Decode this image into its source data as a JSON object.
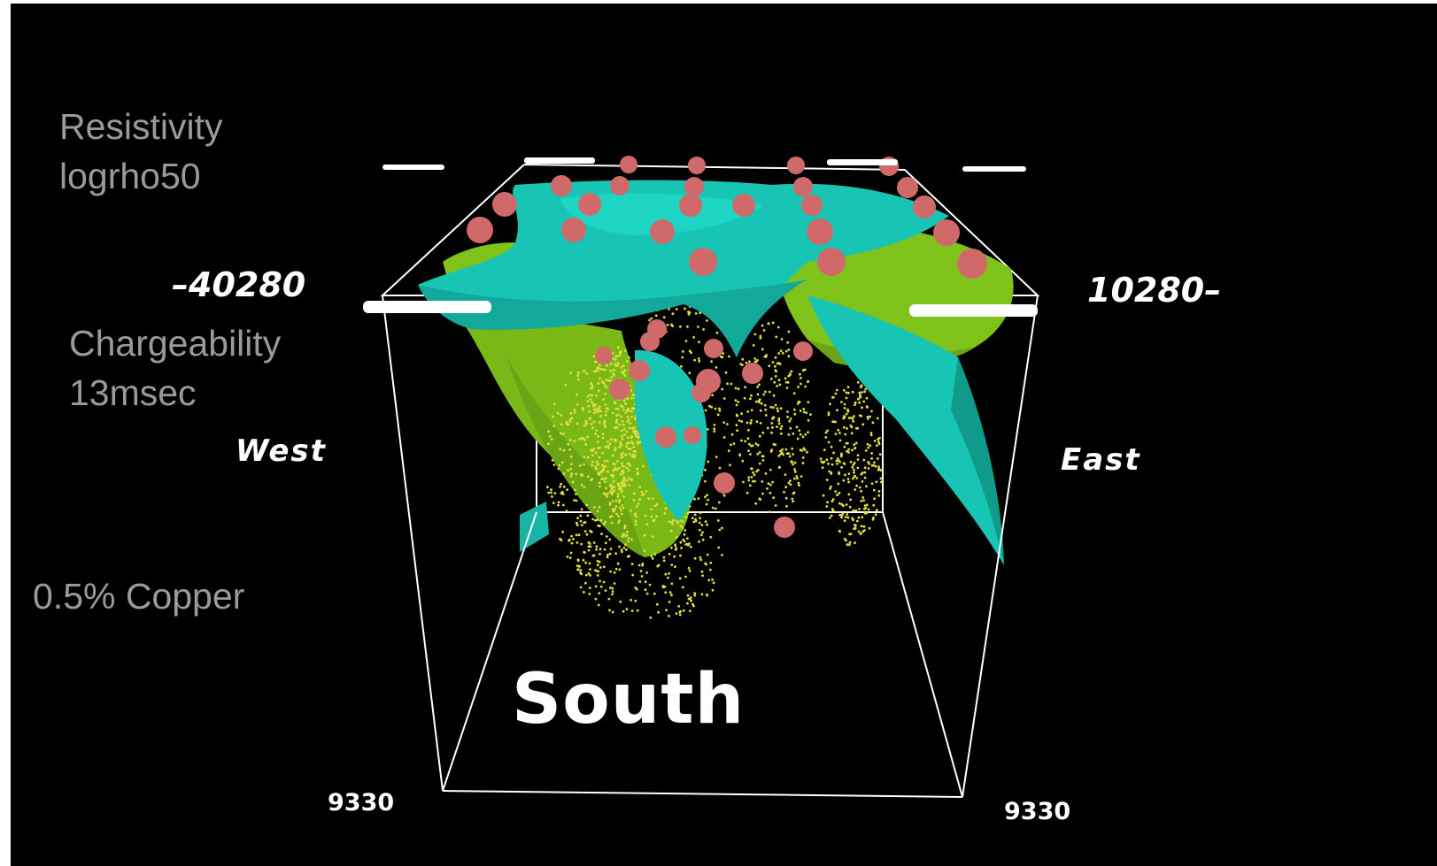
{
  "legend": {
    "resistivity_title": "Resistivity",
    "resistivity_value": "logrho50",
    "chargeability_title": "Chargeability",
    "chargeability_value": "13msec",
    "copper": "0.5% Copper"
  },
  "axes": {
    "left_coord": "–40280",
    "right_coord": "10280–",
    "west": "West",
    "east": "East",
    "south": "South",
    "bottom_left_coord": "9330",
    "bottom_right_coord": "9330"
  },
  "colors": {
    "background": "#000000",
    "resistivity_surface": "#18c4b4",
    "chargeability_surface": "#7ec21a",
    "copper_points": "#e0e040",
    "drill_markers": "#d06a6a",
    "legend_text": "#9a9a9a",
    "box_lines": "#ffffff"
  }
}
